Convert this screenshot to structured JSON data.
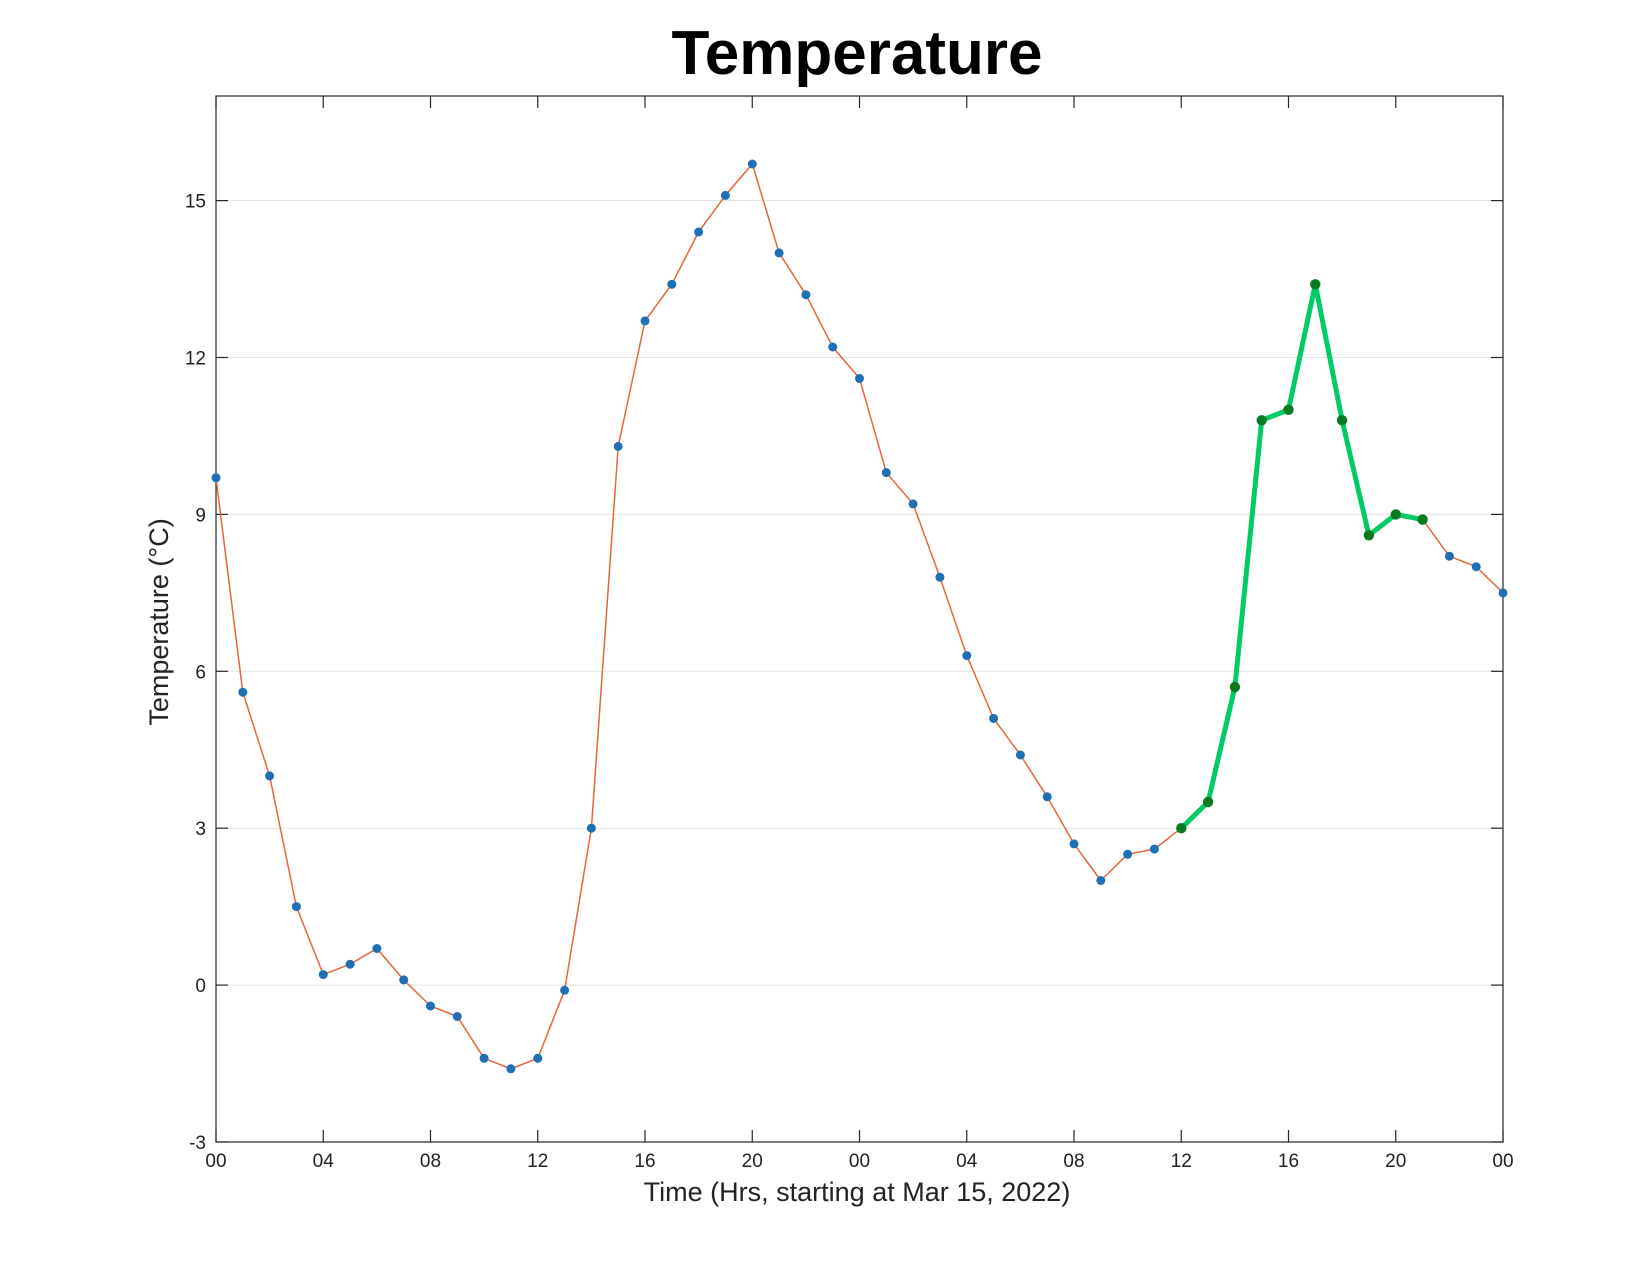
{
  "chart_data": {
    "type": "line",
    "title": "Temperature",
    "xlabel": "Time (Hrs, starting at Mar 15, 2022)",
    "ylabel": "Temperature (°C)",
    "x_unit": "hour",
    "xlim": [
      0,
      48
    ],
    "ylim": [
      -3,
      17
    ],
    "yticks": [
      -3,
      0,
      3,
      6,
      9,
      12,
      15
    ],
    "xticks": [
      {
        "x": 0,
        "label": "00"
      },
      {
        "x": 4,
        "label": "04"
      },
      {
        "x": 8,
        "label": "08"
      },
      {
        "x": 12,
        "label": "12"
      },
      {
        "x": 16,
        "label": "16"
      },
      {
        "x": 20,
        "label": "20"
      },
      {
        "x": 24,
        "label": "00"
      },
      {
        "x": 28,
        "label": "04"
      },
      {
        "x": 32,
        "label": "08"
      },
      {
        "x": 36,
        "label": "12"
      },
      {
        "x": 40,
        "label": "16"
      },
      {
        "x": 44,
        "label": "20"
      },
      {
        "x": 48,
        "label": "00"
      }
    ],
    "grid": "horizontal",
    "series": [
      {
        "color": "#e8643b",
        "marker_color": "#1f6fb4",
        "x": [
          0,
          1,
          2,
          3,
          4,
          5,
          6,
          7,
          8,
          9,
          10,
          11,
          12,
          13,
          14,
          15,
          16,
          17,
          18,
          19,
          20,
          21,
          22,
          23,
          24,
          25,
          26,
          27,
          28,
          29,
          30,
          31,
          32,
          33,
          34,
          35,
          36,
          37,
          38,
          39,
          40,
          41,
          42,
          43,
          44,
          45,
          46,
          47,
          48
        ],
        "values": [
          9.7,
          5.6,
          4.0,
          1.5,
          0.2,
          0.4,
          0.7,
          0.1,
          -0.4,
          -0.6,
          -1.4,
          -1.6,
          -1.4,
          -0.1,
          3.0,
          10.3,
          12.7,
          13.4,
          14.4,
          15.1,
          15.7,
          14.0,
          13.2,
          12.2,
          11.6,
          9.8,
          9.2,
          7.8,
          6.3,
          5.1,
          4.4,
          3.6,
          2.7,
          2.0,
          2.5,
          2.6,
          3.0,
          3.5,
          5.7,
          10.8,
          11.0,
          13.4,
          10.8,
          8.6,
          9.0,
          8.9,
          8.2,
          8.0,
          7.5
        ]
      },
      {
        "color": "#00cc66",
        "marker_color": "#0a7a1e",
        "x": [
          36,
          37,
          38,
          39,
          40,
          41,
          42,
          43,
          44,
          45
        ],
        "values": [
          3.0,
          3.5,
          5.7,
          10.8,
          11.0,
          13.4,
          10.8,
          8.6,
          9.0,
          8.9
        ]
      }
    ]
  }
}
